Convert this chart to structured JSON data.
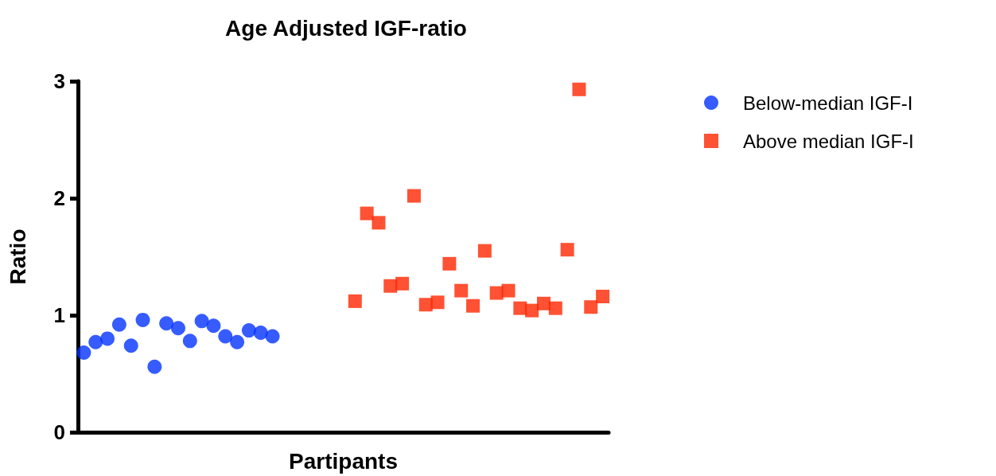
{
  "chart_data": {
    "type": "scatter",
    "title": "Age Adjusted IGF-ratio",
    "xlabel": "Partipants",
    "ylabel": "Ratio",
    "categories": [
      null,
      null,
      null,
      null,
      null,
      null,
      null,
      null,
      null,
      null,
      null,
      null,
      null,
      null,
      null,
      null,
      null,
      null,
      null,
      null,
      null,
      null,
      null,
      null,
      null,
      null,
      null,
      null,
      null,
      null,
      null,
      null,
      null,
      null,
      null,
      null,
      null,
      null,
      null,
      null,
      null,
      null,
      null,
      null,
      null
    ],
    "series": [
      {
        "name": "Below-median IGF-I",
        "color": "#0433ff",
        "marker": "circle",
        "values": [
          0.68,
          0.77,
          0.8,
          0.92,
          0.74,
          0.96,
          0.56,
          0.93,
          0.89,
          0.78,
          0.95,
          0.91,
          0.82,
          0.77,
          0.87,
          0.85,
          0.82,
          null,
          null,
          null,
          null,
          null,
          null,
          null,
          null,
          null,
          null,
          null,
          null,
          null,
          null,
          null,
          null,
          null,
          null,
          null,
          null,
          null,
          null,
          null,
          null,
          null,
          null,
          null,
          null
        ]
      },
      {
        "name": "Above median IGF-I",
        "color": "#ff2600",
        "marker": "square",
        "values": [
          null,
          null,
          null,
          null,
          null,
          null,
          null,
          null,
          null,
          null,
          null,
          null,
          null,
          null,
          null,
          null,
          null,
          null,
          null,
          null,
          null,
          null,
          null,
          1.12,
          1.87,
          1.79,
          1.25,
          1.27,
          2.02,
          1.09,
          1.11,
          1.44,
          1.21,
          1.08,
          1.55,
          1.19,
          1.21,
          1.06,
          1.04,
          1.1,
          1.06,
          1.56,
          2.93,
          1.07,
          1.16
        ]
      }
    ],
    "ylim": [
      0,
      3
    ],
    "yticks": [
      0,
      1,
      2,
      3
    ],
    "grid": false,
    "legend": "top right",
    "tick_labels": "y"
  }
}
